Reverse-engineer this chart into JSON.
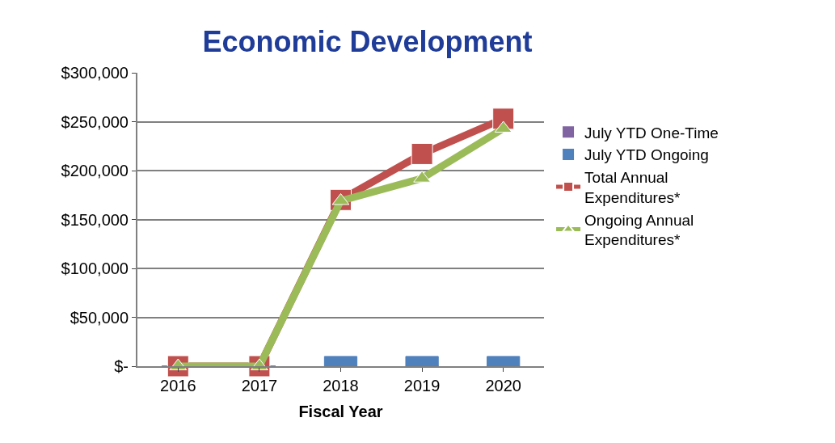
{
  "chart_data": {
    "type": "line",
    "title": "Economic Development",
    "xlabel": "Fiscal Year",
    "categories": [
      "2016",
      "2017",
      "2018",
      "2019",
      "2020"
    ],
    "series": [
      {
        "name": "July YTD One-Time",
        "type": "bar",
        "color": "#8064a2",
        "values": [
          0,
          0,
          0,
          0,
          0
        ]
      },
      {
        "name": "July YTD Ongoing",
        "type": "bar",
        "color": "#4f81bd",
        "values": [
          0,
          0,
          10000,
          10000,
          10000
        ]
      },
      {
        "name": "Total Annual Expenditures*",
        "color": "#c0504d",
        "marker": "square",
        "values": [
          0,
          0,
          170000,
          217000,
          253000
        ]
      },
      {
        "name": "Ongoing Annual Expenditures*",
        "color": "#9bbb59",
        "marker": "triangle",
        "values": [
          0,
          0,
          169000,
          192000,
          243000
        ]
      }
    ],
    "ylim": [
      0,
      300000
    ],
    "yticks": [
      {
        "value": 0,
        "label": "$-"
      },
      {
        "value": 50000,
        "label": "$50,000"
      },
      {
        "value": 100000,
        "label": "$100,000"
      },
      {
        "value": 150000,
        "label": "$150,000"
      },
      {
        "value": 200000,
        "label": "$200,000"
      },
      {
        "value": 250000,
        "label": "$250,000"
      },
      {
        "value": 300000,
        "label": "$300,000"
      }
    ],
    "grid": "y",
    "legend": "right"
  }
}
